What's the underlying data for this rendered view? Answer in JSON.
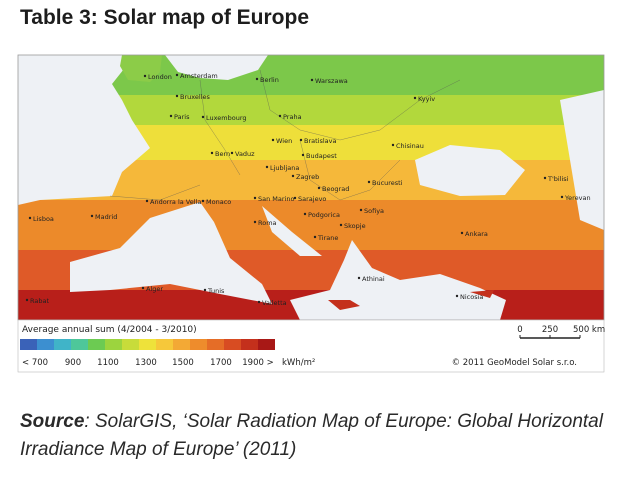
{
  "header": {
    "title": "Table 3:  Solar map of Europe"
  },
  "map": {
    "labels": [
      "London",
      "Amsterdam",
      "Berlin",
      "Warszawa",
      "Bruxelles",
      "Kyyiv",
      "Paris",
      "Luxembourg",
      "Praha",
      "Wien",
      "Bratislava",
      "Chisinau",
      "Bern",
      "Vaduz",
      "Budapest",
      "Ljubljana",
      "Zagreb",
      "Beograd",
      "Bucuresti",
      "T'bilisi",
      "Yerevan",
      "San Marino",
      "Monaco",
      "Andorra la Vella",
      "Sarajevo",
      "Madrid",
      "Lisboa",
      "Roma",
      "Podgorica",
      "Sofiya",
      "Skopje",
      "Tirane",
      "Ankara",
      "Athinai",
      "Alger",
      "Tunis",
      "Valletta",
      "Nicosia",
      "Rabat"
    ]
  },
  "legend": {
    "title": "Average annual sum (4/2004 - 3/2010)",
    "colors": [
      "#3a62b8",
      "#3c8fd0",
      "#40b4c8",
      "#4ec79a",
      "#6ccb52",
      "#9cd43e",
      "#c8dc3a",
      "#eee23a",
      "#f6c83a",
      "#f3a935",
      "#ee8c2c",
      "#e56d27",
      "#d84c22",
      "#c4301c",
      "#a81816"
    ],
    "ticks": [
      "< 700",
      900,
      1100,
      1300,
      1500,
      1700,
      "1900 >"
    ],
    "unit": "kWh/m²"
  },
  "scale": {
    "ticks": [
      0,
      250,
      "500 km"
    ]
  },
  "copyright": "© 2011 GeoModel Solar s.r.o.",
  "source": {
    "label": "Source",
    "text": ": SolarGIS, ‘Solar Radiation Map of Europe: Global Horizontal Irradiance Map of Europe’ (2011)"
  }
}
